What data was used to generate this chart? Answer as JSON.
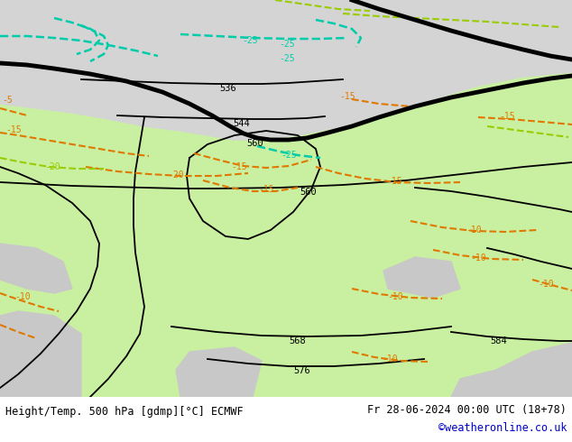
{
  "title_left": "Height/Temp. 500 hPa [gdmp][°C] ECMWF",
  "title_right": "Fr 28-06-2024 00:00 UTC (18+78)",
  "title_right2": "©weatheronline.co.uk",
  "green": "#c8f0a0",
  "gray_north": "#d4d4d4",
  "gray_land": "#c0c0c0",
  "orange": "#e07800",
  "cyan": "#00ccaa",
  "lime": "#99cc00",
  "figsize": [
    6.34,
    4.9
  ],
  "dpi": 100
}
